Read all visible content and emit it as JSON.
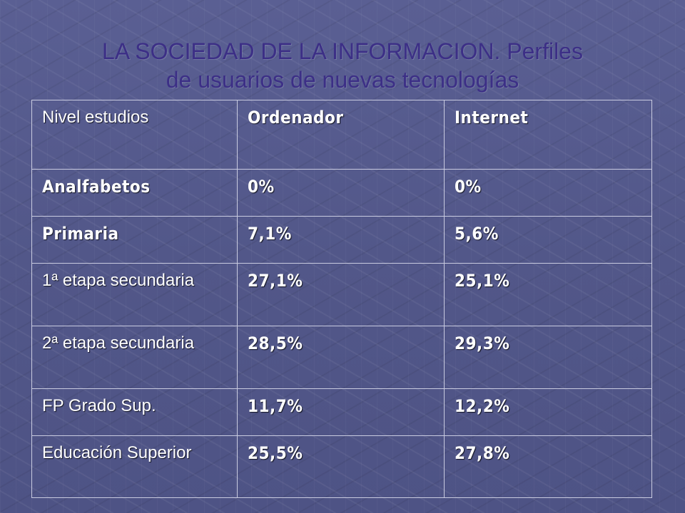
{
  "slide": {
    "title_line1": "LA  SOCIEDAD DE LA INFORMACION. Perfiles",
    "title_line2": "de usuarios de nuevas tecnologías"
  },
  "table": {
    "headers": [
      "Nivel estudios",
      "Ordenador",
      "Internet"
    ],
    "rows": [
      {
        "nivel": "Analfabetos",
        "ordenador": "0%",
        "internet": "0%"
      },
      {
        "nivel": "Primaria",
        "ordenador": "7,1%",
        "internet": "5,6%"
      },
      {
        "nivel": "1ª etapa secundaria",
        "ordenador": "27,1%",
        "internet": "25,1%"
      },
      {
        "nivel": "2ª etapa secundaria",
        "ordenador": "28,5%",
        "internet": "29,3%"
      },
      {
        "nivel": "FP Grado Sup.",
        "ordenador": "11,7%",
        "internet": "12,2%"
      },
      {
        "nivel": "Educación Superior",
        "ordenador": "25,5%",
        "internet": "27,8%"
      }
    ]
  }
}
